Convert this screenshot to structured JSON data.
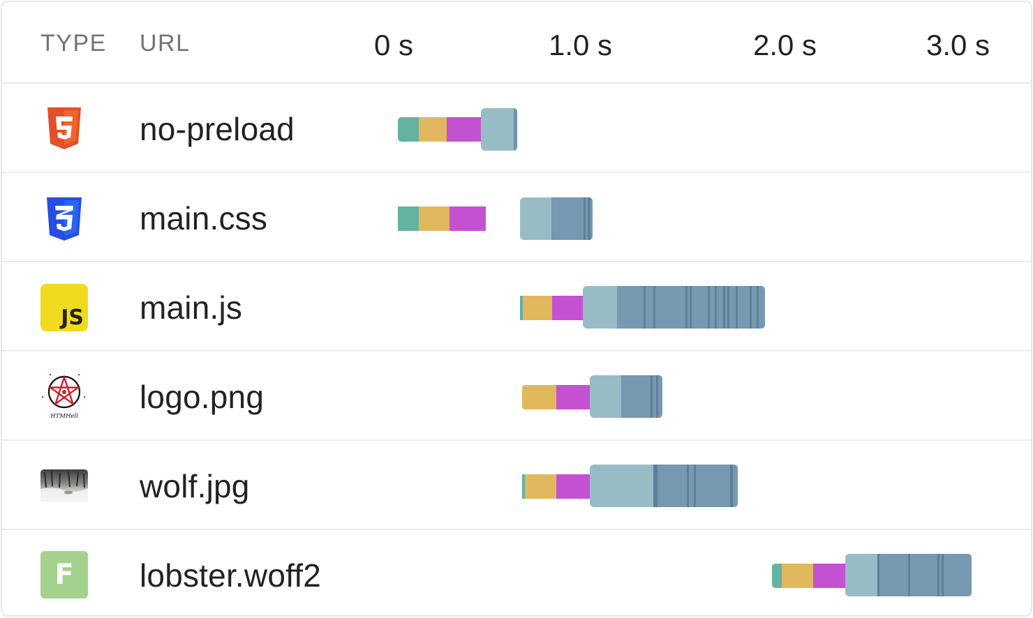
{
  "header": {
    "type_label": "TYPE",
    "url_label": "URL",
    "ticks": [
      "0 s",
      "1.0 s",
      "2.0 s",
      "3.0 s"
    ]
  },
  "colors": {
    "dns": "#63b2a2",
    "connect": "#e2b85e",
    "ssl": "#c451d1",
    "waiting": "#98bcc6",
    "download": "#7699b2",
    "stripe": "#5d7f97"
  },
  "rows": [
    {
      "type_icon": "html5-icon",
      "url": "no-preload"
    },
    {
      "type_icon": "css3-icon",
      "url": "main.css"
    },
    {
      "type_icon": "js-icon",
      "url": "main.js",
      "icon_text": "JS"
    },
    {
      "type_icon": "pentagram-logo-icon",
      "url": "logo.png",
      "icon_caption": "HTMHell"
    },
    {
      "type_icon": "image-thumbnail-icon",
      "url": "wolf.jpg"
    },
    {
      "type_icon": "font-icon",
      "url": "lobster.woff2",
      "icon_text": "F"
    }
  ]
}
